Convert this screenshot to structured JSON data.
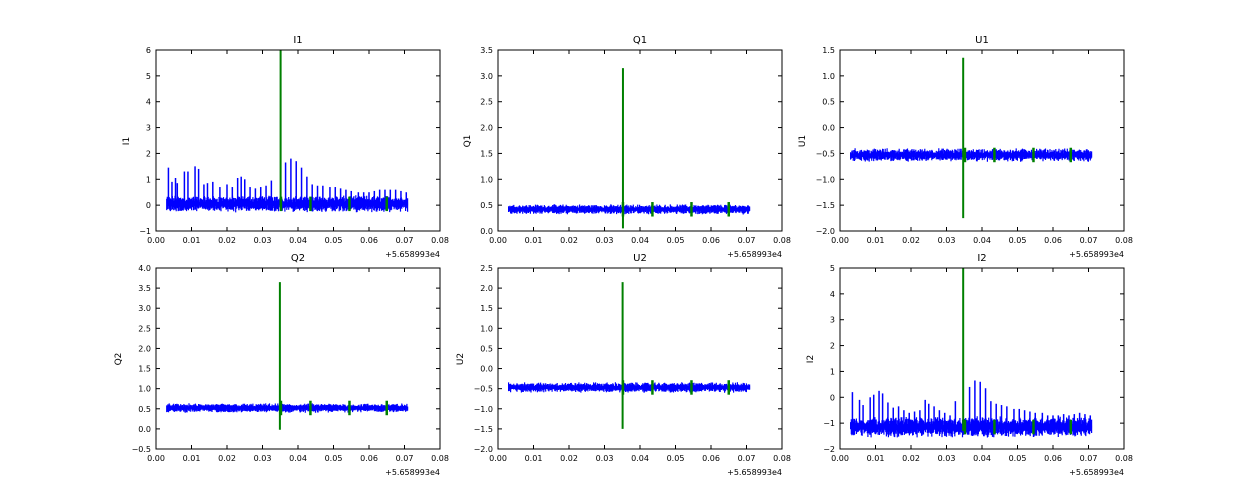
{
  "figure": {
    "background": "#ffffff",
    "colors": {
      "series_noise": "#0000ff",
      "series_spike": "#008000",
      "axes": "#000000"
    }
  },
  "chart_data": [
    {
      "type": "line",
      "title": "I1",
      "ylabel": "I1",
      "xlim": [
        0.0,
        0.08
      ],
      "ylim": [
        -1,
        6
      ],
      "xticks": [
        "0.00",
        "0.01",
        "0.02",
        "0.03",
        "0.04",
        "0.05",
        "0.06",
        "0.07",
        "0.08"
      ],
      "yticks": [
        "−1",
        "0",
        "1",
        "2",
        "3",
        "4",
        "5",
        "6"
      ],
      "x_offset_label": "+5.658993e4",
      "x_range": [
        0.003,
        0.071
      ],
      "series": [
        {
          "color": "#0000ff",
          "kind": "noise_band",
          "baseline": 0.05,
          "band_halfwidth": 0.2,
          "spikes": [
            [
              0.0035,
              1.45
            ],
            [
              0.0045,
              0.9
            ],
            [
              0.0055,
              1.05
            ],
            [
              0.006,
              0.85
            ],
            [
              0.008,
              1.3
            ],
            [
              0.009,
              1.3
            ],
            [
              0.011,
              1.5
            ],
            [
              0.012,
              1.4
            ],
            [
              0.0135,
              0.8
            ],
            [
              0.0145,
              0.85
            ],
            [
              0.016,
              0.9
            ],
            [
              0.018,
              0.7
            ],
            [
              0.02,
              0.8
            ],
            [
              0.0215,
              0.7
            ],
            [
              0.023,
              1.05
            ],
            [
              0.024,
              1.1
            ],
            [
              0.025,
              1.0
            ],
            [
              0.0265,
              0.7
            ],
            [
              0.028,
              0.65
            ],
            [
              0.0295,
              0.7
            ],
            [
              0.031,
              0.75
            ],
            [
              0.0325,
              0.95
            ],
            [
              0.0365,
              1.65
            ],
            [
              0.038,
              1.8
            ],
            [
              0.0395,
              1.7
            ],
            [
              0.041,
              1.45
            ],
            [
              0.0425,
              1.1
            ],
            [
              0.044,
              0.8
            ],
            [
              0.0455,
              0.75
            ],
            [
              0.047,
              0.75
            ],
            [
              0.049,
              0.7
            ],
            [
              0.0505,
              0.7
            ],
            [
              0.052,
              0.65
            ],
            [
              0.0535,
              0.6
            ],
            [
              0.055,
              0.55
            ],
            [
              0.057,
              0.5
            ],
            [
              0.0585,
              0.5
            ],
            [
              0.06,
              0.5
            ],
            [
              0.0615,
              0.55
            ],
            [
              0.063,
              0.6
            ],
            [
              0.0645,
              0.6
            ],
            [
              0.066,
              0.6
            ],
            [
              0.0675,
              0.6
            ],
            [
              0.069,
              0.55
            ],
            [
              0.0705,
              0.5
            ]
          ]
        },
        {
          "color": "#008000",
          "kind": "spike",
          "x": 0.0351,
          "y_peak": 6.0,
          "y_low": -0.1,
          "baseline": 0.05,
          "blips": [
            0.0352,
            0.0435,
            0.0545,
            0.065
          ]
        }
      ]
    },
    {
      "type": "line",
      "title": "Q1",
      "ylabel": "Q1",
      "xlim": [
        0.0,
        0.08
      ],
      "ylim": [
        0.0,
        3.5
      ],
      "xticks": [
        "0.00",
        "0.01",
        "0.02",
        "0.03",
        "0.04",
        "0.05",
        "0.06",
        "0.07",
        "0.08"
      ],
      "yticks": [
        "0.0",
        "0.5",
        "1.0",
        "1.5",
        "2.0",
        "2.5",
        "3.0",
        "3.5"
      ],
      "x_offset_label": "+5.658993e4",
      "x_range": [
        0.003,
        0.071
      ],
      "series": [
        {
          "color": "#0000ff",
          "kind": "noise_band",
          "baseline": 0.42,
          "band_halfwidth": 0.06,
          "spikes": []
        },
        {
          "color": "#008000",
          "kind": "spike",
          "x": 0.0352,
          "y_peak": 3.15,
          "y_low": 0.05,
          "baseline": 0.42,
          "blips": [
            0.0352,
            0.0435,
            0.0545,
            0.065
          ]
        }
      ]
    },
    {
      "type": "line",
      "title": "U1",
      "ylabel": "U1",
      "xlim": [
        0.0,
        0.08
      ],
      "ylim": [
        -2.0,
        1.5
      ],
      "xticks": [
        "0.00",
        "0.01",
        "0.02",
        "0.03",
        "0.04",
        "0.05",
        "0.06",
        "0.07",
        "0.08"
      ],
      "yticks": [
        "−2.0",
        "−1.5",
        "−1.0",
        "−0.5",
        "0.0",
        "0.5",
        "1.0",
        "1.5"
      ],
      "x_offset_label": "+5.658993e4",
      "x_range": [
        0.003,
        0.071
      ],
      "series": [
        {
          "color": "#0000ff",
          "kind": "noise_band",
          "baseline": -0.53,
          "band_halfwidth": 0.08,
          "spikes": []
        },
        {
          "color": "#008000",
          "kind": "spike",
          "x": 0.0347,
          "y_peak": 1.35,
          "y_low": -1.75,
          "baseline": -0.53,
          "blips": [
            0.0352,
            0.0435,
            0.0545,
            0.065
          ]
        }
      ]
    },
    {
      "type": "line",
      "title": "Q2",
      "ylabel": "Q2",
      "xlim": [
        0.0,
        0.08
      ],
      "ylim": [
        -0.5,
        4.0
      ],
      "xticks": [
        "0.00",
        "0.01",
        "0.02",
        "0.03",
        "0.04",
        "0.05",
        "0.06",
        "0.07",
        "0.08"
      ],
      "yticks": [
        "−0.5",
        "0.0",
        "0.5",
        "1.0",
        "1.5",
        "2.0",
        "2.5",
        "3.0",
        "3.5",
        "4.0"
      ],
      "x_offset_label": "+5.658993e4",
      "x_range": [
        0.003,
        0.071
      ],
      "series": [
        {
          "color": "#0000ff",
          "kind": "noise_band",
          "baseline": 0.52,
          "band_halfwidth": 0.07,
          "spikes": []
        },
        {
          "color": "#008000",
          "kind": "spike",
          "x": 0.0349,
          "y_peak": 3.65,
          "y_low": -0.02,
          "baseline": 0.52,
          "blips": [
            0.0352,
            0.0435,
            0.0545,
            0.065
          ]
        }
      ]
    },
    {
      "type": "line",
      "title": "U2",
      "ylabel": "U2",
      "xlim": [
        0.0,
        0.08
      ],
      "ylim": [
        -2.0,
        2.5
      ],
      "xticks": [
        "0.00",
        "0.01",
        "0.02",
        "0.03",
        "0.04",
        "0.05",
        "0.06",
        "0.07",
        "0.08"
      ],
      "yticks": [
        "−2.0",
        "−1.5",
        "−1.0",
        "−0.5",
        "0.0",
        "0.5",
        "1.0",
        "1.5",
        "2.0",
        "2.5"
      ],
      "x_offset_label": "+5.658993e4",
      "x_range": [
        0.003,
        0.071
      ],
      "series": [
        {
          "color": "#0000ff",
          "kind": "noise_band",
          "baseline": -0.47,
          "band_halfwidth": 0.08,
          "spikes": []
        },
        {
          "color": "#008000",
          "kind": "spike",
          "x": 0.0351,
          "y_peak": 2.15,
          "y_low": -1.5,
          "baseline": -0.47,
          "blips": [
            0.0352,
            0.0435,
            0.0545,
            0.065
          ]
        }
      ]
    },
    {
      "type": "line",
      "title": "I2",
      "ylabel": "I2",
      "xlim": [
        0.0,
        0.08
      ],
      "ylim": [
        -2,
        5
      ],
      "xticks": [
        "0.00",
        "0.01",
        "0.02",
        "0.03",
        "0.04",
        "0.05",
        "0.06",
        "0.07",
        "0.08"
      ],
      "yticks": [
        "−2",
        "−1",
        "0",
        "1",
        "2",
        "3",
        "4",
        "5"
      ],
      "x_offset_label": "+5.658993e4",
      "x_range": [
        0.003,
        0.071
      ],
      "series": [
        {
          "color": "#0000ff",
          "kind": "noise_band",
          "baseline": -1.15,
          "band_halfwidth": 0.25,
          "spikes": [
            [
              0.0035,
              0.2
            ],
            [
              0.0055,
              -0.1
            ],
            [
              0.0065,
              -0.3
            ],
            [
              0.0085,
              0.0
            ],
            [
              0.0095,
              0.1
            ],
            [
              0.011,
              0.25
            ],
            [
              0.012,
              0.15
            ],
            [
              0.0135,
              -0.2
            ],
            [
              0.015,
              -0.4
            ],
            [
              0.0165,
              -0.35
            ],
            [
              0.018,
              -0.5
            ],
            [
              0.0195,
              -0.6
            ],
            [
              0.021,
              -0.55
            ],
            [
              0.0225,
              -0.5
            ],
            [
              0.024,
              -0.1
            ],
            [
              0.025,
              -0.25
            ],
            [
              0.0265,
              -0.35
            ],
            [
              0.028,
              -0.5
            ],
            [
              0.0295,
              -0.6
            ],
            [
              0.031,
              -0.7
            ],
            [
              0.0325,
              -0.15
            ],
            [
              0.0365,
              0.4
            ],
            [
              0.038,
              0.65
            ],
            [
              0.0395,
              0.6
            ],
            [
              0.041,
              0.35
            ],
            [
              0.0425,
              -0.15
            ],
            [
              0.044,
              -0.25
            ],
            [
              0.0455,
              -0.3
            ],
            [
              0.047,
              -0.35
            ],
            [
              0.049,
              -0.45
            ],
            [
              0.0505,
              -0.45
            ],
            [
              0.052,
              -0.5
            ],
            [
              0.0535,
              -0.55
            ],
            [
              0.055,
              -0.6
            ],
            [
              0.057,
              -0.6
            ],
            [
              0.0585,
              -0.7
            ],
            [
              0.06,
              -0.7
            ],
            [
              0.0615,
              -0.7
            ],
            [
              0.063,
              -0.65
            ],
            [
              0.0645,
              -0.7
            ],
            [
              0.066,
              -0.65
            ],
            [
              0.0675,
              -0.6
            ],
            [
              0.069,
              -0.65
            ],
            [
              0.0705,
              -0.7
            ]
          ]
        },
        {
          "color": "#008000",
          "kind": "spike",
          "x": 0.0347,
          "y_peak": 5.0,
          "y_low": -1.3,
          "baseline": -1.15,
          "blips": [
            0.0352,
            0.0435,
            0.0545,
            0.065
          ]
        }
      ]
    }
  ]
}
